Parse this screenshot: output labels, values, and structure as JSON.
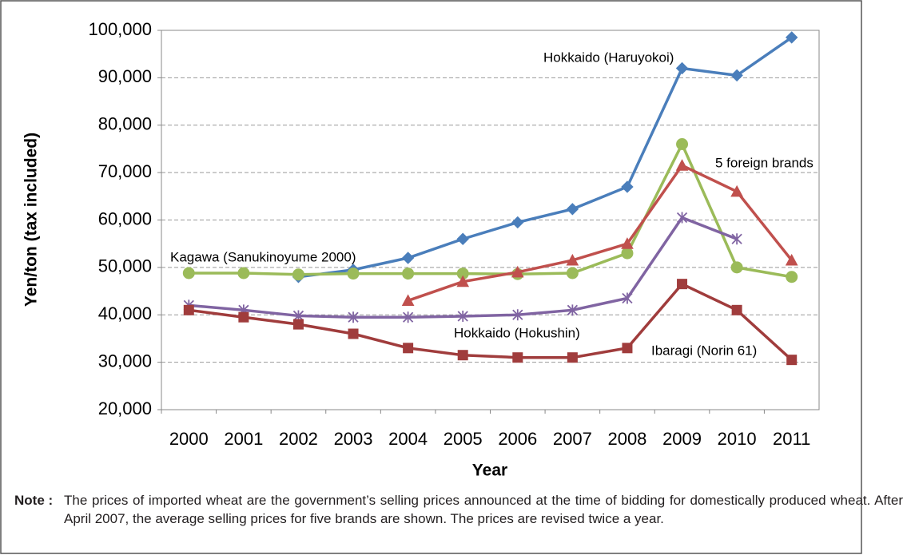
{
  "chart_data": {
    "type": "line",
    "categories": [
      "2000",
      "2001",
      "2002",
      "2003",
      "2004",
      "2005",
      "2006",
      "2007",
      "2008",
      "2009",
      "2010",
      "2011"
    ],
    "series": [
      {
        "name": "Hokkaido (Haruyokoi)",
        "color": "#4a7ebb",
        "marker": "diamond",
        "values": [
          null,
          null,
          48000,
          49500,
          52000,
          56000,
          59500,
          62300,
          67000,
          92000,
          90500,
          98500
        ]
      },
      {
        "name": "Kagawa (Sanukinoyume 2000)",
        "color": "#9bbb59",
        "marker": "circle",
        "values": [
          48800,
          48800,
          48500,
          48700,
          48700,
          48700,
          48600,
          48800,
          53000,
          76000,
          50000,
          48000
        ]
      },
      {
        "name": "5 foreign brands",
        "color": "#c0504d",
        "marker": "triangle",
        "values": [
          null,
          null,
          null,
          null,
          43000,
          47000,
          49000,
          51500,
          55000,
          71500,
          66000,
          51500
        ]
      },
      {
        "name": "Hokkaido (Hokushin)",
        "color": "#8064a2",
        "marker": "star",
        "values": [
          42000,
          41000,
          39800,
          39500,
          39500,
          39700,
          40000,
          41000,
          43500,
          60500,
          56000,
          null
        ]
      },
      {
        "name": "Ibaragi (Norin 61)",
        "color": "#a03c3c",
        "marker": "square",
        "values": [
          41000,
          39500,
          38000,
          36000,
          33000,
          31500,
          31000,
          31000,
          33000,
          46500,
          41000,
          30500
        ]
      }
    ],
    "xlabel": "Year",
    "ylabel": "Yen/ton (tax included)",
    "ylim": [
      20000,
      100000
    ],
    "yticks": [
      {
        "value": 20000,
        "label": "20,000"
      },
      {
        "value": 30000,
        "label": "30,000"
      },
      {
        "value": 40000,
        "label": "40,000"
      },
      {
        "value": 50000,
        "label": "50,000"
      },
      {
        "value": 60000,
        "label": "60,000"
      },
      {
        "value": 70000,
        "label": "70,000"
      },
      {
        "value": 80000,
        "label": "80,000"
      },
      {
        "value": 90000,
        "label": "90,000"
      },
      {
        "value": 100000,
        "label": "100,000"
      }
    ],
    "grid": true
  },
  "note": {
    "label": "Note :",
    "text": "The prices of imported wheat are the government’s selling prices announced at the time of bidding for domestically produced wheat. After April 2007, the average selling prices for five brands are shown. The prices are revised twice a year."
  }
}
